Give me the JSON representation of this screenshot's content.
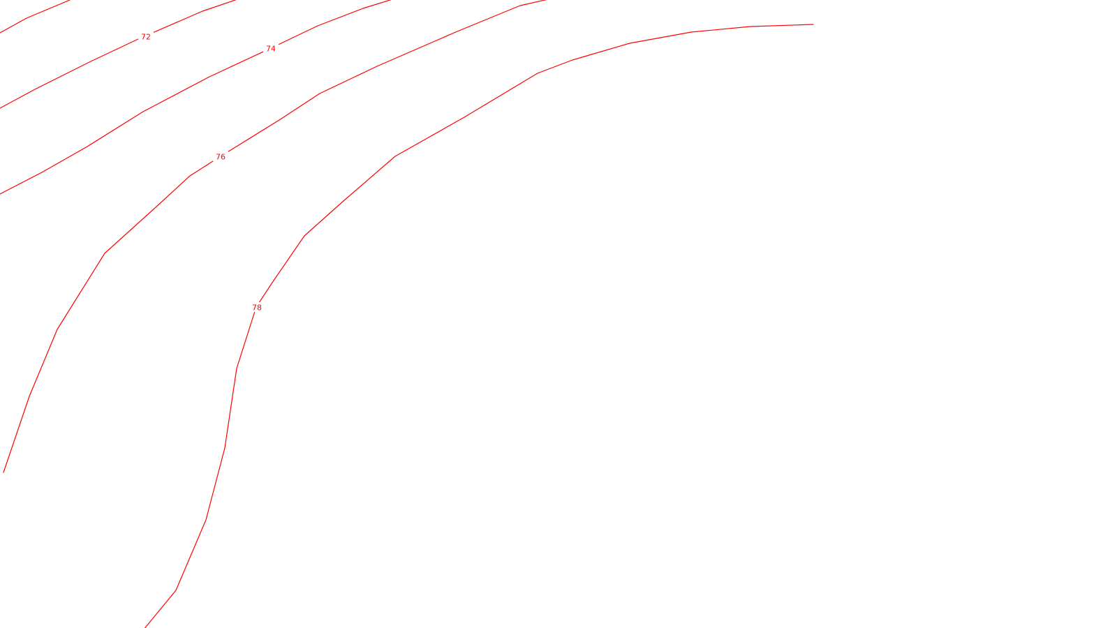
{
  "map": {
    "background_color": "#ffffff",
    "contour_color": "#ff0000",
    "contours": [
      {
        "id": "top-left-unlabeled",
        "label": ""
      },
      {
        "id": "c72",
        "label": "72"
      },
      {
        "id": "c74",
        "label": "74"
      },
      {
        "id": "c76",
        "label": "76"
      },
      {
        "id": "c78",
        "label": "78"
      }
    ]
  }
}
